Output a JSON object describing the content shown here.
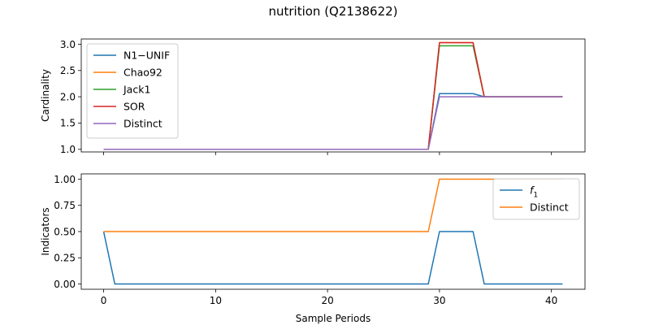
{
  "figure": {
    "title": "nutrition (Q2138622)"
  },
  "chart_data": [
    {
      "type": "line",
      "ylabel": "Cardinality",
      "xlabel": "",
      "xlim": [
        -2,
        43
      ],
      "ylim": [
        0.95,
        3.1
      ],
      "xticks": [
        0,
        10,
        20,
        30,
        40
      ],
      "show_xtick_labels": false,
      "yticks": [
        1.0,
        1.5,
        2.0,
        2.5,
        3.0
      ],
      "ytick_labels": [
        "1.0",
        "1.5",
        "2.0",
        "2.5",
        "3.0"
      ],
      "grid": false,
      "legend_position": "top-left",
      "series": [
        {
          "name": "N1−UNIF",
          "color": "#1f77b4",
          "points": [
            [
              0,
              1.0
            ],
            [
              29,
              1.0
            ],
            [
              30,
              2.06
            ],
            [
              33,
              2.06
            ],
            [
              34,
              2.0
            ],
            [
              41,
              2.0
            ]
          ]
        },
        {
          "name": "Chao92",
          "color": "#ff7f0e",
          "points": [
            [
              0,
              1.0
            ],
            [
              29,
              1.0
            ],
            [
              30,
              3.03
            ],
            [
              33,
              3.03
            ],
            [
              34,
              2.0
            ],
            [
              41,
              2.0
            ]
          ]
        },
        {
          "name": "Jack1",
          "color": "#2ca02c",
          "points": [
            [
              0,
              1.0
            ],
            [
              29,
              1.0
            ],
            [
              30,
              2.97
            ],
            [
              33,
              2.97
            ],
            [
              34,
              2.0
            ],
            [
              41,
              2.0
            ]
          ]
        },
        {
          "name": "SOR",
          "color": "#d62728",
          "points": [
            [
              0,
              1.0
            ],
            [
              29,
              1.0
            ],
            [
              30,
              3.03
            ],
            [
              33,
              3.03
            ],
            [
              34,
              2.0
            ],
            [
              41,
              2.0
            ]
          ]
        },
        {
          "name": "Distinct",
          "color": "#9467bd",
          "points": [
            [
              0,
              1.0
            ],
            [
              29,
              1.0
            ],
            [
              30,
              2.0
            ],
            [
              41,
              2.0
            ]
          ]
        }
      ]
    },
    {
      "type": "line",
      "ylabel": "Indicators",
      "xlabel": "Sample Periods",
      "xlim": [
        -2,
        43
      ],
      "ylim": [
        -0.05,
        1.05
      ],
      "xticks": [
        0,
        10,
        20,
        30,
        40
      ],
      "xtick_labels": [
        "0",
        "10",
        "20",
        "30",
        "40"
      ],
      "show_xtick_labels": true,
      "yticks": [
        0.0,
        0.25,
        0.5,
        0.75,
        1.0
      ],
      "ytick_labels": [
        "0.00",
        "0.25",
        "0.50",
        "0.75",
        "1.00"
      ],
      "grid": false,
      "legend_position": "top-right",
      "series": [
        {
          "name": "f",
          "name_subscript": "1",
          "color": "#1f77b4",
          "points": [
            [
              0,
              0.5
            ],
            [
              1,
              0.0
            ],
            [
              29,
              0.0
            ],
            [
              30,
              0.5
            ],
            [
              33,
              0.5
            ],
            [
              34,
              0.0
            ],
            [
              41,
              0.0
            ]
          ]
        },
        {
          "name": "Distinct",
          "color": "#ff7f0e",
          "points": [
            [
              0,
              0.5
            ],
            [
              29,
              0.5
            ],
            [
              30,
              1.0
            ],
            [
              41,
              1.0
            ]
          ]
        }
      ]
    }
  ]
}
